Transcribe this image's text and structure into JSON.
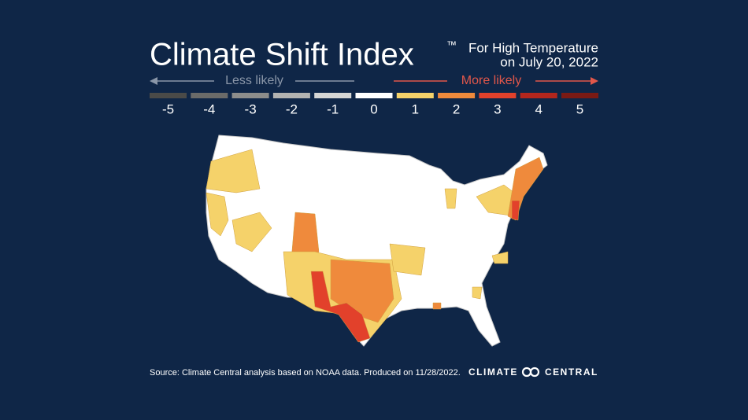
{
  "title": "Climate Shift Index",
  "trademark": "™",
  "subtitle": [
    "For High Temperature",
    "on July 20, 2022"
  ],
  "legend": {
    "less_label": "Less likely",
    "more_label": "More likely",
    "scale": [
      {
        "value": -5,
        "color": "#4a4a48"
      },
      {
        "value": -4,
        "color": "#6b6b69"
      },
      {
        "value": -3,
        "color": "#8d8d8b"
      },
      {
        "value": -2,
        "color": "#b3b3b1"
      },
      {
        "value": -1,
        "color": "#d6d6d4"
      },
      {
        "value": 0,
        "color": "#ffffff"
      },
      {
        "value": 1,
        "color": "#f5d26a"
      },
      {
        "value": 2,
        "color": "#ef8a3c"
      },
      {
        "value": 3,
        "color": "#e2412b"
      },
      {
        "value": 4,
        "color": "#b3261d"
      },
      {
        "value": 5,
        "color": "#7a1a14"
      }
    ]
  },
  "map_regions": [
    1,
    1,
    1,
    2,
    1,
    2,
    3,
    1,
    1,
    2,
    3,
    1,
    1,
    1,
    2
  ],
  "source": "Source: Climate Central analysis based on NOAA data. Produced on 11/28/2022.",
  "logo": [
    "CLIMATE",
    "CENTRAL"
  ]
}
